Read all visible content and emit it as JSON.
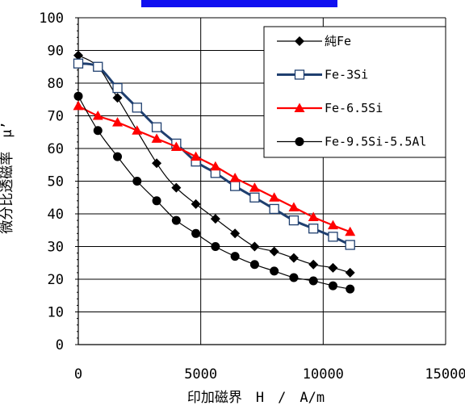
{
  "header_bar": {
    "color": "#1010f0"
  },
  "chart_data": {
    "type": "line",
    "xlabel": "印加磁界　H　/　A/m",
    "ylabel": "微分比透磁率　μ’",
    "xlim": [
      0,
      15000
    ],
    "ylim": [
      0,
      100
    ],
    "x_ticks": [
      "0",
      "5000",
      "10000",
      "15000"
    ],
    "y_ticks": [
      "0",
      "10",
      "20",
      "30",
      "40",
      "50",
      "60",
      "70",
      "80",
      "90",
      "100"
    ],
    "grid": "vertical-and-horizontal",
    "legend_position": "top-right",
    "series": [
      {
        "name": "純Fe",
        "color": "#000000",
        "marker": "diamond",
        "x": [
          0,
          800,
          1600,
          3200,
          4000,
          4800,
          5600,
          6400,
          7200,
          8000,
          8800,
          9600,
          10400,
          11100
        ],
        "y": [
          88.5,
          85,
          75.5,
          55.5,
          48,
          43,
          38.5,
          34,
          30,
          28.5,
          26.5,
          24.5,
          23.5,
          22
        ]
      },
      {
        "name": "Fe-3Si",
        "color": "#1f3f6f",
        "marker": "square-open",
        "x": [
          0,
          800,
          1600,
          2400,
          3200,
          4000,
          4800,
          5600,
          6400,
          7200,
          8000,
          8800,
          9600,
          10400,
          11100
        ],
        "y": [
          86,
          85,
          78.5,
          72.5,
          66.5,
          61.5,
          56,
          52.5,
          48.5,
          45,
          41.5,
          38,
          35.5,
          33,
          30.5
        ]
      },
      {
        "name": "Fe-6.5Si",
        "color": "#ff0000",
        "marker": "triangle",
        "x": [
          0,
          800,
          1600,
          2400,
          3200,
          4000,
          4800,
          5600,
          6400,
          7200,
          8000,
          8800,
          9600,
          10400,
          11100
        ],
        "y": [
          73,
          70,
          68,
          65.5,
          63,
          60.5,
          57.5,
          54.5,
          51,
          48,
          45,
          42,
          39,
          36.5,
          34.5
        ]
      },
      {
        "name": "Fe-9.5Si-5.5Al",
        "color": "#000000",
        "marker": "circle",
        "x": [
          0,
          800,
          1600,
          2400,
          3200,
          4000,
          4800,
          5600,
          6400,
          7200,
          8000,
          8800,
          9600,
          10400,
          11100
        ],
        "y": [
          76,
          65.5,
          57.5,
          50,
          44,
          38,
          34,
          30,
          27,
          24.5,
          22.5,
          20.5,
          19.5,
          18,
          17
        ]
      }
    ]
  }
}
